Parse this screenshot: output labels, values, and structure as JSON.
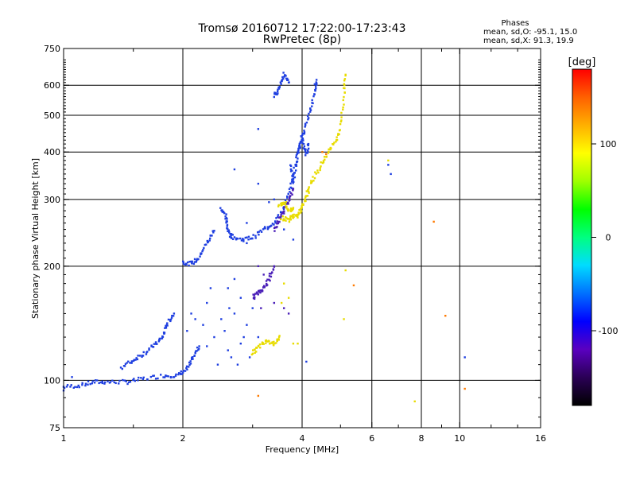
{
  "chart_data": {
    "type": "scatter",
    "title": "Tromsø 20160712 17:22:00-17:23:43",
    "subtitle": "RwPretec (8p)",
    "xlabel": "Frequency [MHz]",
    "ylabel": "Stationary phase Virtual Height [km]",
    "x_scale": "log2",
    "y_scale": "log",
    "xlim": [
      1,
      16
    ],
    "ylim": [
      75,
      750
    ],
    "x_ticks": [
      1,
      2,
      4,
      6,
      8,
      10,
      16
    ],
    "x_tick_labels": [
      "1",
      "2",
      "4",
      "6",
      "8",
      "10",
      "16"
    ],
    "x_minor_ticks": [
      1.5,
      3,
      5,
      7,
      9,
      12,
      14
    ],
    "x_gridlines": [
      2,
      4,
      6,
      8,
      10
    ],
    "y_ticks": [
      75,
      100,
      200,
      300,
      400,
      500,
      600,
      750
    ],
    "y_tick_labels": [
      "75",
      "100",
      "200",
      "300",
      "400",
      "500",
      "600",
      "750"
    ],
    "y_gridlines": [
      100,
      200,
      300,
      400,
      500,
      600
    ],
    "grid": true,
    "stats": {
      "heading": "Phases",
      "line1": "mean, sd,O: -95.1, 15.0",
      "line2": "mean, sd,X:  91.3, 19.9"
    },
    "colorbar": {
      "label": "[deg]",
      "range": [
        -180,
        180
      ],
      "ticks": [
        100,
        0,
        -100
      ],
      "tick_labels": [
        "100",
        "0",
        "-100"
      ],
      "palette": [
        "#000000",
        "#2a0055",
        "#5a00c0",
        "#0000ff",
        "#0070ff",
        "#00dcff",
        "#00ff80",
        "#00ff00",
        "#a0ff00",
        "#ffff00",
        "#ffb000",
        "#ff6000",
        "#ff0000"
      ]
    },
    "series": [
      {
        "phase_deg": -100,
        "color": "#1f3fe0",
        "segments": [
          [
            [
              1.0,
              96
            ],
            [
              1.1,
              97
            ],
            [
              1.2,
              99
            ],
            [
              1.3,
              99
            ],
            [
              1.45,
              99
            ],
            [
              1.6,
              101
            ],
            [
              1.8,
              103
            ],
            [
              1.95,
              103
            ],
            [
              2.05,
              107
            ],
            [
              2.12,
              115
            ],
            [
              2.2,
              123
            ]
          ],
          [
            [
              1.4,
              108
            ],
            [
              1.5,
              113
            ],
            [
              1.6,
              118
            ],
            [
              1.7,
              124
            ],
            [
              1.78,
              130
            ],
            [
              1.82,
              140
            ],
            [
              1.9,
              150
            ]
          ],
          [
            [
              2.0,
              205
            ],
            [
              2.1,
              203
            ],
            [
              2.2,
              210
            ],
            [
              2.3,
              230
            ],
            [
              2.4,
              248
            ]
          ],
          [
            [
              2.5,
              285
            ],
            [
              2.56,
              272
            ],
            [
              2.6,
              250
            ],
            [
              2.65,
              240
            ],
            [
              2.8,
              235
            ],
            [
              3.0,
              238
            ],
            [
              3.2,
              250
            ],
            [
              3.4,
              260
            ],
            [
              3.6,
              285
            ],
            [
              3.75,
              325
            ],
            [
              3.85,
              370
            ],
            [
              3.95,
              420
            ],
            [
              4.05,
              460
            ],
            [
              4.2,
              510
            ],
            [
              4.3,
              580
            ],
            [
              4.35,
              620
            ]
          ],
          [
            [
              3.4,
              560
            ],
            [
              3.5,
              590
            ],
            [
              3.6,
              640
            ],
            [
              3.7,
              610
            ]
          ],
          [
            [
              3.75,
              370
            ],
            [
              3.8,
              330
            ],
            [
              3.9,
              395
            ],
            [
              4.0,
              430
            ],
            [
              4.1,
              395
            ],
            [
              4.15,
              420
            ]
          ]
        ],
        "points": [
          [
            2.3,
            160
          ],
          [
            2.4,
            130
          ],
          [
            2.5,
            145
          ],
          [
            2.6,
            120
          ],
          [
            2.6,
            175
          ],
          [
            2.7,
            150
          ],
          [
            2.8,
            125
          ],
          [
            2.8,
            165
          ],
          [
            2.9,
            140
          ],
          [
            2.45,
            110
          ],
          [
            2.55,
            135
          ],
          [
            2.65,
            115
          ],
          [
            2.7,
            185
          ],
          [
            2.75,
            110
          ],
          [
            2.85,
            130
          ],
          [
            2.35,
            175
          ],
          [
            2.3,
            123
          ],
          [
            2.25,
            140
          ],
          [
            2.95,
            115
          ],
          [
            2.62,
            155
          ],
          [
            1.0,
            94
          ],
          [
            1.05,
            102
          ],
          [
            2.05,
            135
          ],
          [
            2.15,
            145
          ],
          [
            2.7,
            360
          ],
          [
            3.1,
            330
          ],
          [
            4.1,
            112
          ],
          [
            2.9,
            260
          ],
          [
            2.9,
            230
          ],
          [
            3.0,
            155
          ],
          [
            3.1,
            130
          ],
          [
            3.8,
            235
          ],
          [
            3.6,
            250
          ],
          [
            6.7,
            350
          ],
          [
            6.6,
            370
          ],
          [
            10.3,
            115
          ],
          [
            2.1,
            150
          ],
          [
            3.3,
            295
          ],
          [
            3.4,
            300
          ],
          [
            3.1,
            460
          ]
        ]
      },
      {
        "phase_deg": -120,
        "color": "#4a1fb8",
        "segments": [
          [
            [
              3.0,
              165
            ],
            [
              3.1,
              170
            ],
            [
              3.2,
              175
            ],
            [
              3.3,
              185
            ],
            [
              3.4,
              200
            ]
          ],
          [
            [
              3.4,
              250
            ],
            [
              3.5,
              265
            ],
            [
              3.6,
              280
            ],
            [
              3.7,
              300
            ],
            [
              3.8,
              320
            ]
          ]
        ],
        "points": [
          [
            3.15,
            155
          ],
          [
            3.4,
            160
          ],
          [
            3.6,
            155
          ],
          [
            3.7,
            150
          ],
          [
            3.1,
            200
          ],
          [
            3.2,
            190
          ]
        ]
      },
      {
        "phase_deg": 95,
        "color": "#e8dc00",
        "segments": [
          [
            [
              3.55,
              268
            ],
            [
              3.7,
              265
            ],
            [
              3.8,
              272
            ],
            [
              3.9,
              270
            ],
            [
              4.0,
              285
            ],
            [
              4.1,
              305
            ],
            [
              4.2,
              330
            ],
            [
              4.4,
              360
            ],
            [
              4.6,
              390
            ],
            [
              4.8,
              420
            ],
            [
              5.0,
              460
            ],
            [
              5.1,
              560
            ],
            [
              5.15,
              640
            ]
          ],
          [
            [
              3.5,
              290
            ],
            [
              3.6,
              295
            ],
            [
              3.7,
              280
            ],
            [
              3.8,
              285
            ]
          ],
          [
            [
              3.0,
              118
            ],
            [
              3.1,
              122
            ],
            [
              3.25,
              128
            ],
            [
              3.4,
              125
            ],
            [
              3.5,
              130
            ]
          ]
        ],
        "points": [
          [
            3.6,
            180
          ],
          [
            3.7,
            165
          ],
          [
            3.55,
            160
          ],
          [
            5.15,
            195
          ],
          [
            5.1,
            145
          ],
          [
            6.6,
            380
          ],
          [
            7.7,
            88
          ],
          [
            3.8,
            125
          ],
          [
            3.9,
            125
          ]
        ]
      },
      {
        "phase_deg": 140,
        "color": "#ff7a00",
        "points": [
          [
            3.1,
            91
          ],
          [
            4.5,
            400
          ],
          [
            4.6,
            395
          ],
          [
            5.4,
            178
          ],
          [
            8.6,
            262
          ],
          [
            9.2,
            148
          ],
          [
            10.3,
            95
          ]
        ]
      }
    ]
  }
}
